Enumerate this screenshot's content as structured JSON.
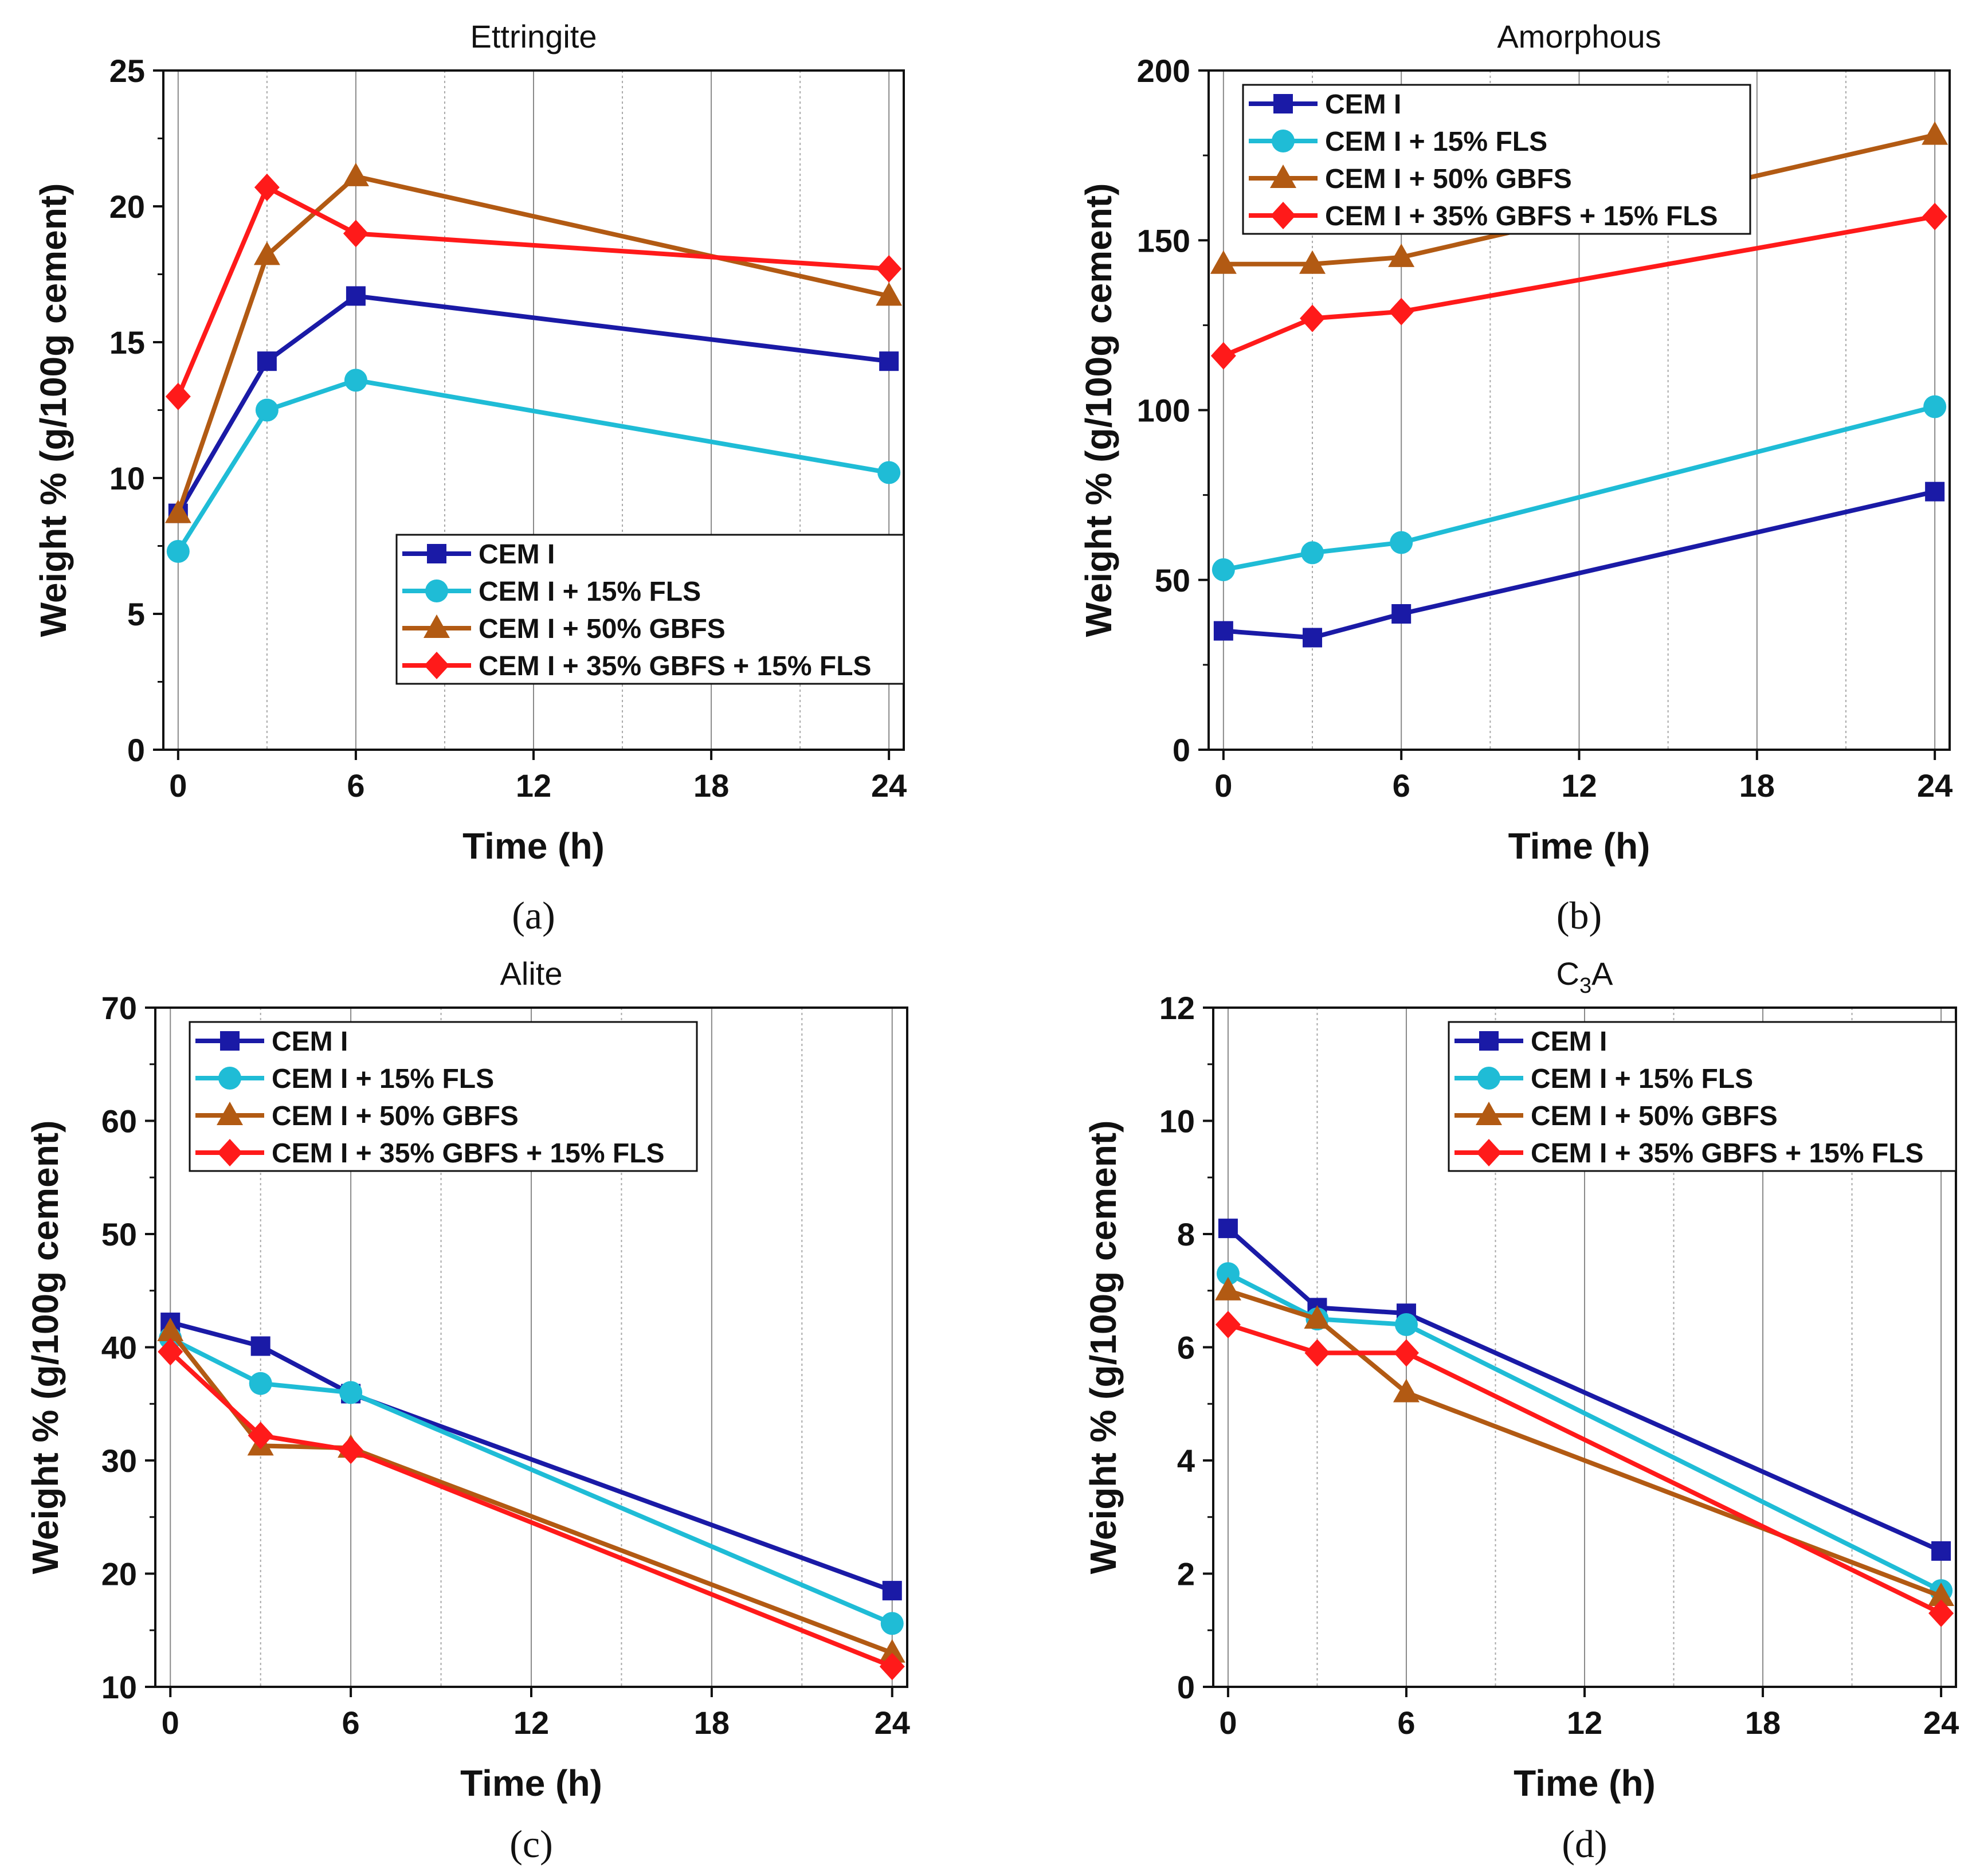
{
  "chart_data": [
    {
      "id": "a",
      "type": "line",
      "title": "Ettringite",
      "caption": "(a)",
      "xlabel": "Time (h)",
      "ylabel": "Weight % (g/100g cement)",
      "xlim": [
        -0.5,
        24.5
      ],
      "ylim": [
        0,
        25
      ],
      "xticks": [
        "0",
        "6",
        "12",
        "18",
        "24"
      ],
      "yticks": [
        "0",
        "5",
        "10",
        "15",
        "20",
        "25"
      ],
      "legend_position": "lower-right",
      "series": [
        {
          "name": "CEM I",
          "color": "#1a1aa6",
          "marker": "square",
          "x": [
            0,
            3,
            6,
            24
          ],
          "y": [
            8.7,
            14.3,
            16.7,
            14.3
          ]
        },
        {
          "name": "CEM I + 15% FLS",
          "color": "#1fbcd6",
          "marker": "circle",
          "x": [
            0,
            3,
            6,
            24
          ],
          "y": [
            7.3,
            12.5,
            13.6,
            10.2
          ]
        },
        {
          "name": "CEM I + 50% GBFS",
          "color": "#b25a13",
          "marker": "triangle",
          "x": [
            0,
            3,
            6,
            24
          ],
          "y": [
            8.7,
            18.2,
            21.1,
            16.7
          ]
        },
        {
          "name": "CEM I + 35% GBFS + 15% FLS",
          "color": "#ff1a1a",
          "marker": "diamond",
          "x": [
            0,
            3,
            6,
            24
          ],
          "y": [
            13.0,
            20.7,
            19.0,
            17.7
          ]
        }
      ]
    },
    {
      "id": "b",
      "type": "line",
      "title": "Amorphous",
      "caption": "(b)",
      "xlabel": "Time (h)",
      "ylabel": "Weight % (g/100g cement)",
      "xlim": [
        -0.5,
        24.5
      ],
      "ylim": [
        0,
        200
      ],
      "xticks": [
        "0",
        "6",
        "12",
        "18",
        "24"
      ],
      "yticks": [
        "0",
        "50",
        "100",
        "150",
        "200"
      ],
      "legend_position": "top-left",
      "series": [
        {
          "name": "CEM I",
          "color": "#1a1aa6",
          "marker": "square",
          "x": [
            0,
            3,
            6,
            24
          ],
          "y": [
            35,
            33,
            40,
            76
          ]
        },
        {
          "name": "CEM I + 15% FLS",
          "color": "#1fbcd6",
          "marker": "circle",
          "x": [
            0,
            3,
            6,
            24
          ],
          "y": [
            53,
            58,
            61,
            101
          ]
        },
        {
          "name": "CEM I + 50% GBFS",
          "color": "#b25a13",
          "marker": "triangle",
          "x": [
            0,
            3,
            6,
            24
          ],
          "y": [
            143,
            143,
            145,
            181
          ]
        },
        {
          "name": "CEM I + 35% GBFS + 15% FLS",
          "color": "#ff1a1a",
          "marker": "diamond",
          "x": [
            0,
            3,
            6,
            24
          ],
          "y": [
            116,
            127,
            129,
            157
          ]
        }
      ]
    },
    {
      "id": "c",
      "type": "line",
      "title": "Alite",
      "caption": "(c)",
      "xlabel": "Time (h)",
      "ylabel": "Weight % (g/100g cement)",
      "xlim": [
        -0.5,
        24.5
      ],
      "ylim": [
        10,
        70
      ],
      "xticks": [
        "0",
        "6",
        "12",
        "18",
        "24"
      ],
      "yticks": [
        "10",
        "20",
        "30",
        "40",
        "50",
        "60",
        "70"
      ],
      "legend_position": "top-left",
      "series": [
        {
          "name": "CEM I",
          "color": "#1a1aa6",
          "marker": "square",
          "x": [
            0,
            3,
            6,
            24
          ],
          "y": [
            42.2,
            40.1,
            35.9,
            18.5
          ]
        },
        {
          "name": "CEM I + 15% FLS",
          "color": "#1fbcd6",
          "marker": "circle",
          "x": [
            0,
            3,
            6,
            24
          ],
          "y": [
            40.8,
            36.8,
            36.0,
            15.6
          ]
        },
        {
          "name": "CEM I + 50% GBFS",
          "color": "#b25a13",
          "marker": "triangle",
          "x": [
            0,
            3,
            6,
            24
          ],
          "y": [
            41.4,
            31.3,
            31.1,
            13.0
          ]
        },
        {
          "name": "CEM I + 35% GBFS + 15% FLS",
          "color": "#ff1a1a",
          "marker": "diamond",
          "x": [
            0,
            3,
            6,
            24
          ],
          "y": [
            39.6,
            32.2,
            30.9,
            11.8
          ]
        }
      ]
    },
    {
      "id": "d",
      "type": "line",
      "title": "C",
      "title_sub": "3",
      "title_suffix": "A",
      "caption": "(d)",
      "xlabel": "Time (h)",
      "ylabel": "Weight % (g/100g cement)",
      "xlim": [
        -0.5,
        24.5
      ],
      "ylim": [
        0,
        12
      ],
      "xticks": [
        "0",
        "6",
        "12",
        "18",
        "24"
      ],
      "yticks": [
        "0",
        "2",
        "4",
        "6",
        "8",
        "10",
        "12"
      ],
      "legend_position": "top-right",
      "series": [
        {
          "name": "CEM I",
          "color": "#1a1aa6",
          "marker": "square",
          "x": [
            0,
            3,
            6,
            24
          ],
          "y": [
            8.1,
            6.7,
            6.6,
            2.4
          ]
        },
        {
          "name": "CEM I + 15% FLS",
          "color": "#1fbcd6",
          "marker": "circle",
          "x": [
            0,
            3,
            6,
            24
          ],
          "y": [
            7.3,
            6.5,
            6.4,
            1.7
          ]
        },
        {
          "name": "CEM I + 50% GBFS",
          "color": "#b25a13",
          "marker": "triangle",
          "x": [
            0,
            3,
            6,
            24
          ],
          "y": [
            7.0,
            6.5,
            5.2,
            1.6
          ]
        },
        {
          "name": "CEM I + 35% GBFS + 15% FLS",
          "color": "#ff1a1a",
          "marker": "diamond",
          "x": [
            0,
            3,
            6,
            24
          ],
          "y": [
            6.4,
            5.9,
            5.9,
            1.3
          ]
        }
      ]
    }
  ]
}
